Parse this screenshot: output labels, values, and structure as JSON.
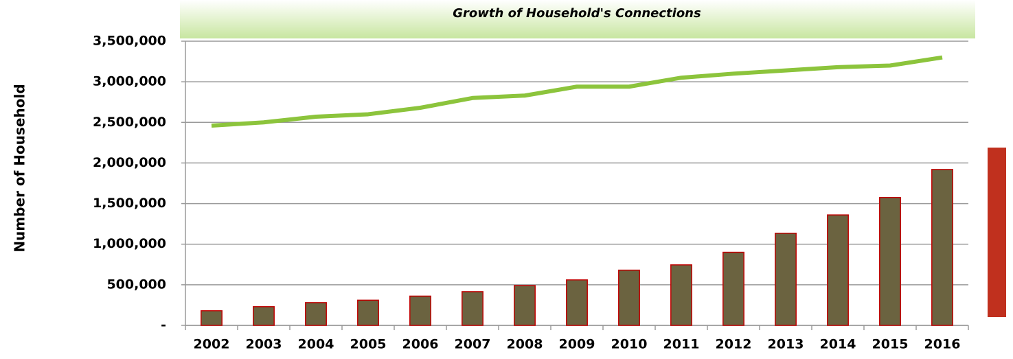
{
  "chart_data": {
    "type": "bar",
    "title": "Growth of Household's Connections",
    "y_label": "Number of Household",
    "categories": [
      "2002",
      "2003",
      "2004",
      "2005",
      "2006",
      "2007",
      "2008",
      "2009",
      "2010",
      "2011",
      "2012",
      "2013",
      "2014",
      "2015",
      "2016"
    ],
    "series": [
      {
        "type": "bar",
        "color": "#6b6340",
        "edge_color": "#c00000",
        "values": [
          180000,
          230000,
          280000,
          310000,
          360000,
          415000,
          490000,
          560000,
          680000,
          745000,
          900000,
          1135000,
          1360000,
          1575000,
          1920000
        ]
      },
      {
        "type": "line",
        "color": "#8cc43c",
        "values": [
          2460000,
          2500000,
          2570000,
          2600000,
          2680000,
          2800000,
          2830000,
          2940000,
          2940000,
          3050000,
          3100000,
          3140000,
          3180000,
          3200000,
          3300000
        ]
      }
    ],
    "ylim": [
      0,
      3500000
    ],
    "yticks": [
      {
        "value": 0,
        "label": "-"
      },
      {
        "value": 500000,
        "label": "500,000"
      },
      {
        "value": 1000000,
        "label": "1,000,000"
      },
      {
        "value": 1500000,
        "label": "1,500,000"
      },
      {
        "value": 2000000,
        "label": "2,000,000"
      },
      {
        "value": 2500000,
        "label": "2,500,000"
      },
      {
        "value": 3000000,
        "label": "3,000,000"
      },
      {
        "value": 3500000,
        "label": "3,500,000"
      }
    ],
    "grid": true
  }
}
